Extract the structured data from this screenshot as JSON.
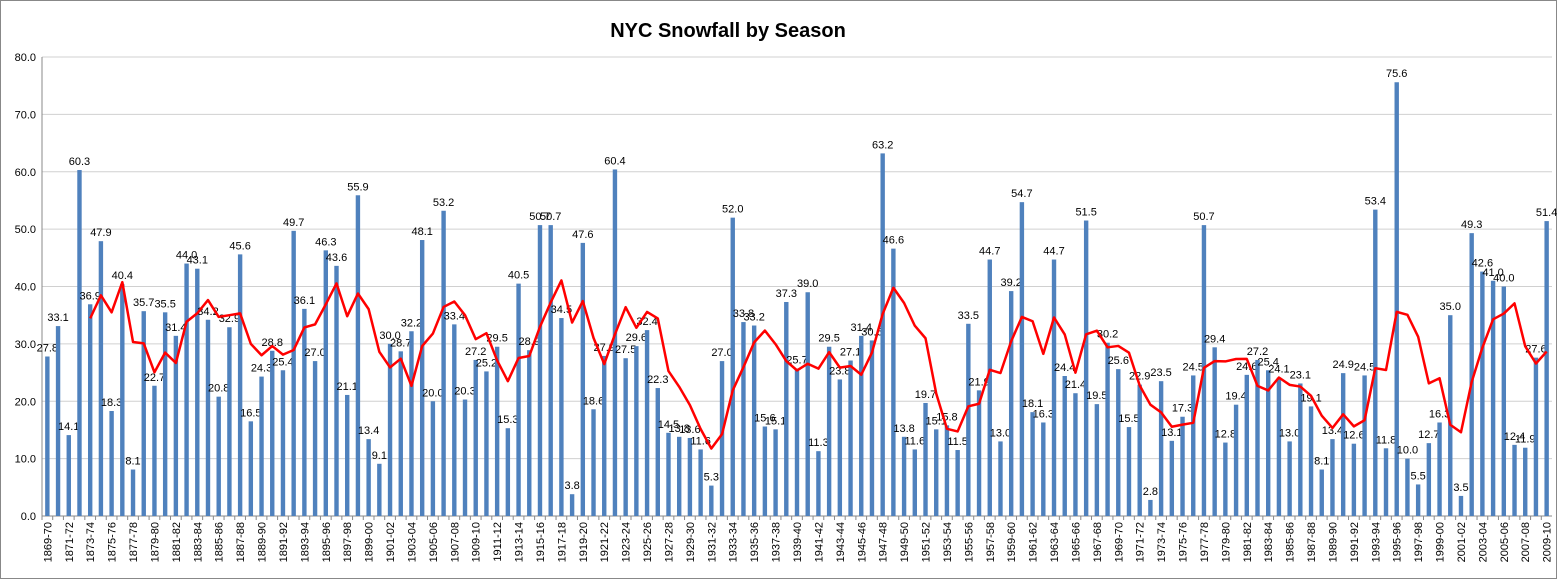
{
  "chart_data": {
    "type": "bar",
    "title": "NYC  Snowfall by Season",
    "categories": [
      "1869-70",
      null,
      "1871-72",
      null,
      "1873-74",
      null,
      "1875-76",
      null,
      "1877-78",
      null,
      "1879-80",
      null,
      "1881-82",
      null,
      "1883-84",
      null,
      "1885-86",
      null,
      "1887-88",
      null,
      "1889-90",
      null,
      "1891-92",
      null,
      "1893-94",
      null,
      "1895-96",
      null,
      "1897-98",
      null,
      "1899-00",
      null,
      "1901-02",
      null,
      "1903-04",
      null,
      "1905-06",
      null,
      "1907-08",
      null,
      "1909-10",
      null,
      "1911-12",
      null,
      "1913-14",
      null,
      "1915-16",
      null,
      "1917-18",
      null,
      "1919-20",
      null,
      "1921-22",
      null,
      "1923-24",
      null,
      "1925-26",
      null,
      "1927-28",
      null,
      "1929-30",
      null,
      "1931-32",
      null,
      "1933-34",
      null,
      "1935-36",
      null,
      "1937-38",
      null,
      "1939-40",
      null,
      "1941-42",
      null,
      "1943-44",
      null,
      "1945-46",
      null,
      "1947-48",
      null,
      "1949-50",
      null,
      "1951-52",
      null,
      "1953-54",
      null,
      "1955-56",
      null,
      "1957-58",
      null,
      "1959-60",
      null,
      "1961-62",
      null,
      "1963-64",
      null,
      "1965-66",
      null,
      "1967-68",
      null,
      "1969-70",
      null,
      "1971-72",
      null,
      "1973-74",
      null,
      "1975-76",
      null,
      "1977-78",
      null,
      "1979-80",
      null,
      "1981-82",
      null,
      "1983-84",
      null,
      "1985-86",
      null,
      "1987-88",
      null,
      "1989-90",
      null,
      "1991-92",
      null,
      "1993-94",
      null,
      "1995-96",
      null,
      "1997-98",
      null,
      "1999-00",
      null,
      "2001-02",
      null,
      "2003-04",
      null,
      "2005-06",
      null,
      "2007-08",
      null,
      "2009-10"
    ],
    "series": [
      {
        "color": "#4f81bd",
        "values": [
          27.8,
          33.1,
          14.1,
          60.3,
          36.9,
          47.9,
          18.3,
          40.4,
          8.1,
          35.7,
          22.7,
          35.5,
          31.4,
          44.0,
          43.1,
          34.2,
          20.8,
          32.9,
          45.6,
          16.5,
          24.3,
          28.8,
          25.4,
          49.7,
          36.1,
          27.0,
          46.3,
          43.6,
          21.1,
          55.9,
          13.4,
          9.1,
          30.0,
          28.7,
          32.2,
          48.1,
          20.0,
          53.2,
          33.4,
          20.3,
          27.2,
          25.2,
          29.5,
          15.3,
          40.5,
          28.9,
          50.7,
          50.7,
          34.5,
          3.8,
          47.6,
          18.6,
          27.9,
          60.4,
          27.5,
          29.6,
          32.4,
          22.3,
          14.5,
          13.8,
          13.6,
          11.6,
          5.3,
          27.0,
          52.0,
          33.8,
          33.2,
          15.6,
          15.1,
          37.3,
          25.7,
          39.0,
          11.3,
          29.5,
          23.8,
          27.1,
          31.4,
          30.6,
          63.2,
          46.6,
          13.8,
          11.6,
          19.7,
          15.1,
          15.8,
          11.5,
          33.5,
          21.9,
          44.7,
          13.0,
          39.2,
          54.7,
          18.1,
          16.3,
          44.7,
          24.4,
          21.4,
          51.5,
          19.5,
          30.2,
          25.6,
          15.5,
          22.9,
          2.8,
          23.5,
          13.1,
          17.3,
          24.5,
          50.7,
          29.4,
          12.8,
          19.4,
          24.6,
          27.2,
          25.4,
          24.1,
          13.0,
          23.1,
          19.1,
          8.1,
          13.4,
          24.9,
          12.6,
          24.5,
          53.4,
          11.8,
          75.6,
          10.0,
          5.5,
          12.7,
          16.3,
          35.0,
          3.5,
          49.3,
          42.6,
          41.0,
          40.0,
          12.4,
          11.9,
          27.6,
          51.4
        ],
        "value_labels": [
          "27.8",
          "33.1",
          "14.1",
          "60.3",
          "36.9",
          "47.9",
          "18.3",
          "40.4",
          "8.1",
          "35.7",
          "22.7",
          "35.5",
          "31.4",
          "44.0",
          "43.1",
          "34.2",
          "20.8",
          "32.9",
          "45.6",
          "16.5",
          "24.3",
          "28.8",
          "25.4",
          "49.7",
          "36.1",
          "27.0",
          "46.3",
          "43.6",
          "21.1",
          "55.9",
          "13.4",
          "9.1",
          "30.0",
          "28.7",
          "32.2",
          "48.1",
          "20.0",
          "53.2",
          "33.4",
          "20.3",
          "27.2",
          "25.2",
          "29.5",
          "15.3",
          "40.5",
          "28.9",
          "50.7",
          "50.7",
          "34.5",
          "3.8",
          "47.6",
          "18.6",
          "27.9",
          "60.4",
          "27.5",
          "29.6",
          "32.4",
          "22.3",
          "14.5",
          "13.8",
          "13.6",
          "11.6",
          "5.3",
          "27.0",
          "52.0",
          "33.8",
          "33.2",
          "15.6",
          "15.1",
          "37.3",
          "25.7",
          "39.0",
          "11.3",
          "29.5",
          "23.8",
          "27.1",
          "31.4",
          "30.6",
          "63.2",
          "46.6",
          "13.8",
          "11.6",
          "19.7",
          "15.1",
          "15.8",
          "11.5",
          "33.5",
          "21.9",
          "44.7",
          "13.0",
          "39.2",
          "54.7",
          "18.1",
          "16.3",
          "44.7",
          "24.4",
          "21.4",
          "51.5",
          "19.5",
          "30.2",
          "25.6",
          "15.5",
          "22.9",
          "2.8",
          "23.5",
          "13.1",
          "17.3",
          "24.5",
          "50.7",
          "29.4",
          "12.8",
          "19.4",
          "24.6",
          "27.2",
          "25.4",
          "24.1",
          "13.0",
          "23.1",
          "19.1",
          "8.1",
          "13.4",
          "24.9",
          "12.6",
          "24.5",
          "53.4",
          "11.8",
          "75.6",
          "10.0",
          "5.5",
          "12.7",
          "16.3",
          "35.0",
          "3.5",
          "49.3",
          "42.6",
          "41.0",
          "40.0",
          "12.4",
          "11.9",
          "27.6",
          "51.4"
        ]
      },
      {
        "color": "#ff0000",
        "type": "line",
        "values": [
          null,
          null,
          null,
          null,
          34.44,
          38.46,
          35.5,
          40.76,
          30.32,
          30.08,
          25.04,
          28.48,
          26.68,
          33.86,
          35.34,
          37.64,
          34.7,
          35.0,
          35.32,
          30.0,
          28.02,
          29.62,
          28.12,
          28.94,
          32.86,
          33.4,
          36.9,
          40.54,
          34.82,
          38.78,
          36.06,
          28.62,
          25.9,
          27.42,
          22.68,
          29.62,
          31.8,
          36.44,
          37.38,
          35.0,
          30.82,
          31.86,
          27.12,
          23.5,
          27.54,
          27.88,
          32.98,
          37.22,
          41.06,
          33.72,
          37.46,
          31.04,
          26.48,
          31.66,
          36.4,
          32.8,
          35.56,
          34.44,
          25.26,
          22.52,
          19.32,
          15.16,
          11.76,
          14.26,
          21.9,
          25.94,
          30.26,
          32.32,
          29.94,
          27.0,
          25.38,
          26.54,
          25.68,
          28.56,
          25.86,
          26.14,
          24.62,
          28.48,
          35.22,
          39.78,
          37.12,
          33.16,
          30.98,
          21.36,
          15.2,
          14.74,
          19.12,
          19.56,
          25.48,
          24.92,
          30.46,
          34.7,
          33.94,
          28.26,
          34.6,
          31.64,
          24.98,
          31.66,
          32.3,
          29.4,
          29.64,
          28.46,
          22.74,
          19.4,
          18.06,
          15.56,
          15.92,
          16.24,
          25.82,
          27.0,
          26.94,
          27.36,
          27.38,
          22.68,
          21.88,
          24.14,
          22.86,
          22.56,
          20.94,
          17.48,
          15.34,
          17.72,
          15.62,
          16.7,
          25.76,
          25.44,
          35.58,
          35.06,
          31.26,
          23.12,
          24.02,
          15.9,
          14.6,
          23.36,
          29.34,
          34.28,
          35.28,
          37.06,
          29.58,
          26.58,
          28.66
        ]
      }
    ],
    "ylim": [
      0,
      80
    ],
    "yticks": [
      {
        "value": 0,
        "label": "0.0"
      },
      {
        "value": 10,
        "label": "10.0"
      },
      {
        "value": 20,
        "label": "20.0"
      },
      {
        "value": 30,
        "label": "30.0"
      },
      {
        "value": 40,
        "label": "40.0"
      },
      {
        "value": 50,
        "label": "50.0"
      },
      {
        "value": 60,
        "label": "60.0"
      },
      {
        "value": 70,
        "label": "70.0"
      },
      {
        "value": 80,
        "label": "80.0"
      }
    ],
    "grid": true
  }
}
